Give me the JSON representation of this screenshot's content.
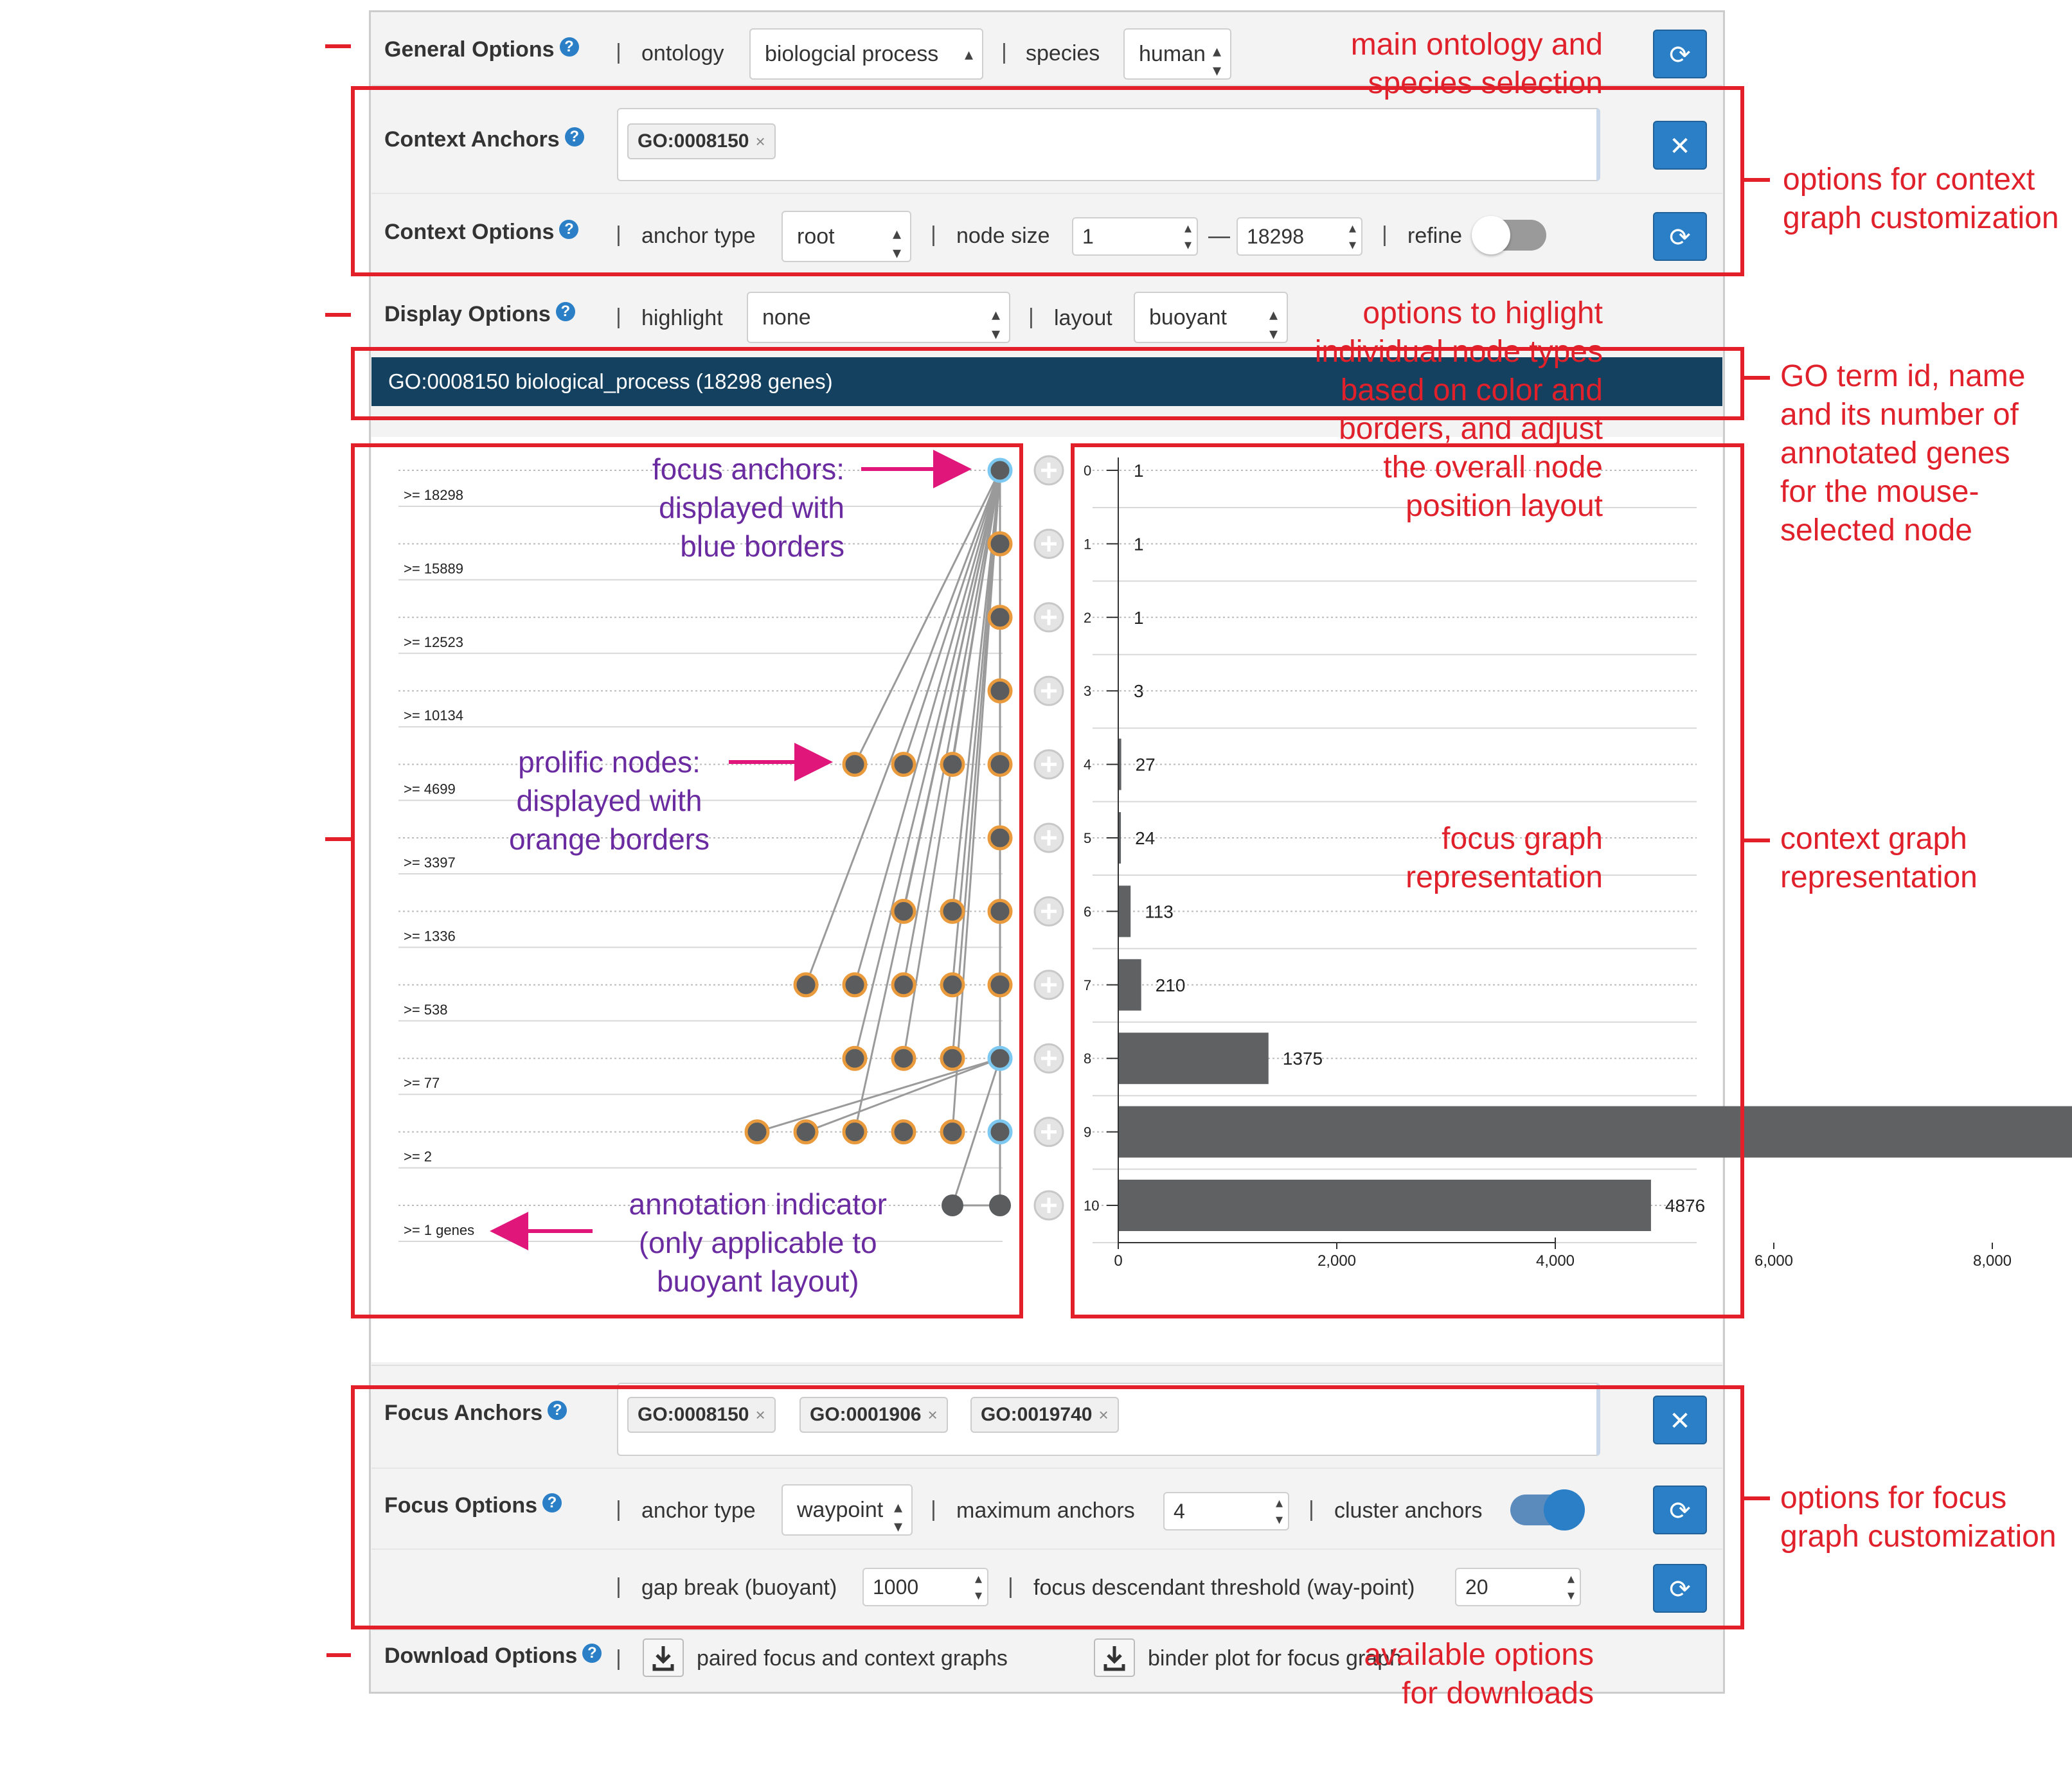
{
  "general": {
    "label": "General Options",
    "ontology_label": "ontology",
    "ontology_value": "biologcial process",
    "species_label": "species",
    "species_value": "human",
    "refresh_icon": "refresh-icon"
  },
  "context": {
    "anchors_label": "Context Anchors",
    "anchor_tags": [
      "GO:0008150"
    ],
    "options_label": "Context Options",
    "anchor_type_label": "anchor type",
    "anchor_type_value": "root",
    "node_size_label": "node size",
    "node_size_min": "1",
    "node_size_dash": "—",
    "node_size_max": "18298",
    "refine_label": "refine",
    "refine_on": false
  },
  "display": {
    "label": "Display Options",
    "highlight_label": "highlight",
    "highlight_value": "none",
    "layout_label": "layout",
    "layout_value": "buoyant"
  },
  "selected_term": "GO:0008150 biological_process (18298 genes)",
  "focus_graph": {
    "level_labels": [
      ">= 18298",
      ">= 15889",
      ">= 12523",
      ">= 10134",
      ">= 4699",
      ">= 3397",
      ">= 1336",
      ">= 538",
      ">= 77",
      ">= 2",
      ">= 1 genes"
    ]
  },
  "chart_data": {
    "type": "bar",
    "orientation": "horizontal",
    "categories": [
      "0",
      "1",
      "2",
      "3",
      "4",
      "5",
      "6",
      "7",
      "8",
      "9",
      "10"
    ],
    "values": [
      1,
      1,
      1,
      3,
      27,
      24,
      113,
      210,
      1375,
      8760,
      4876
    ],
    "xticks": [
      "0",
      "2,000",
      "4,000",
      "6,000",
      "8,000"
    ],
    "xlim": [
      0,
      8760
    ],
    "bar_color": "#5f6163"
  },
  "focus": {
    "anchors_label": "Focus Anchors",
    "anchor_tags": [
      "GO:0008150",
      "GO:0001906",
      "GO:0019740"
    ],
    "options_label": "Focus Options",
    "anchor_type_label": "anchor type",
    "anchor_type_value": "waypoint",
    "max_anchors_label": "maximum anchors",
    "max_anchors_value": "4",
    "cluster_label": "cluster anchors",
    "cluster_on": true,
    "gap_break_label": "gap break (buoyant)",
    "gap_break_value": "1000",
    "threshold_label": "focus descendant threshold (way-point)",
    "threshold_value": "20"
  },
  "download": {
    "label": "Download Options",
    "paired_label": "paired focus and context graphs",
    "binder_label": "binder plot for focus graph"
  },
  "annotations": {
    "general": [
      "main ontology and",
      "species selection"
    ],
    "context": [
      "options for context",
      "graph customization"
    ],
    "display": [
      "options to higlight",
      "individual node types",
      "based on color and",
      "borders, and adjust",
      "the overall node",
      "position layout"
    ],
    "term": [
      "GO term id, name",
      "and its number of",
      "annotated genes",
      "for the mouse-",
      "selected node"
    ],
    "focus_graph": [
      "focus graph",
      "representation"
    ],
    "context_graph": [
      "context graph",
      "representation"
    ],
    "focus_opts": [
      "options for focus",
      "graph customization"
    ],
    "downloads": [
      "available options",
      "for downloads"
    ],
    "focus_anchors_note": [
      "focus anchors:",
      "displayed with",
      "blue borders"
    ],
    "prolific_note": [
      "prolific nodes:",
      "displayed with",
      "orange borders"
    ],
    "indicator_note": [
      "annotation indicator",
      "(only applicable to",
      "buoyant layout)"
    ]
  },
  "colors": {
    "accent": "#2a7fc6",
    "title_bar": "#14415f",
    "annotation_red": "#e3202a",
    "annotation_purple": "#6a2aa0",
    "arrow_pink": "#e0167a",
    "prolific_border": "#e89a3c",
    "anchor_border": "#7cc8f0",
    "node_fill": "#5a5c5e"
  }
}
